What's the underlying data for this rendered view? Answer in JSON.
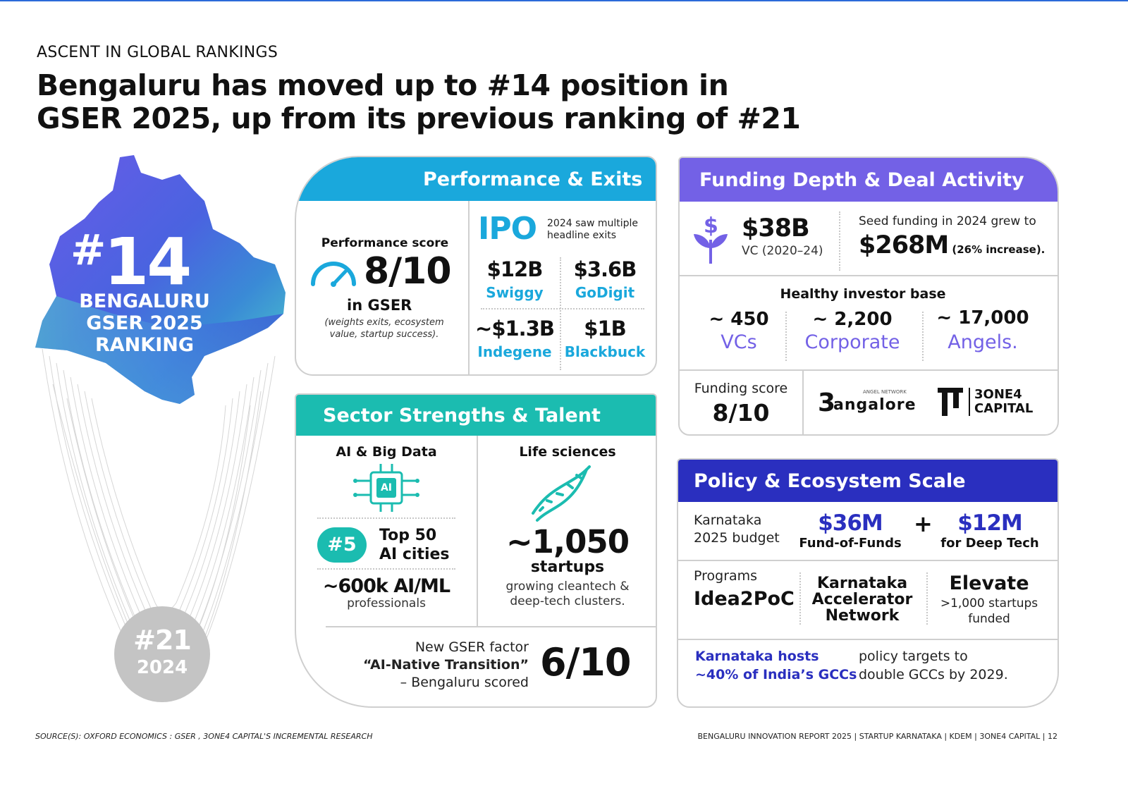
{
  "kicker": "ASCENT IN GLOBAL RANKINGS",
  "headline": {
    "line1": "Bengaluru has moved up to #14 position in",
    "line2": "GSER 2025, up from its previous ranking of #21"
  },
  "map": {
    "rank_hash": "#",
    "rank_num": "14",
    "label": [
      "BENGALURU",
      "GSER 2025",
      "RANKING"
    ],
    "prev_rank": "#21",
    "prev_year": "2024"
  },
  "performance": {
    "title": "Performance & Exits",
    "score_label": "Performance score",
    "score": "8/10",
    "score_sub": "in GSER",
    "score_note": "(weights exits, ecosystem value, startup success).",
    "ipo": "IPO",
    "ipo_note": "2024 saw multiple headline exits",
    "exits": [
      {
        "value": "$12B",
        "name": "Swiggy"
      },
      {
        "value": "$3.6B",
        "name": "GoDigit"
      },
      {
        "value": "~$1.3B",
        "name": "Indegene"
      },
      {
        "value": "$1B",
        "name": "Blackbuck"
      }
    ]
  },
  "sector": {
    "title": "Sector Strengths & Talent",
    "ai_title": "AI & Big Data",
    "ai_badge": "AI",
    "rank": "#5",
    "rank_text_1": "Top 50",
    "rank_text_2": "AI cities",
    "talent_value": "~600k AI/ML",
    "talent_sub": "professionals",
    "life_title": "Life sciences",
    "startups_value": "~1,050",
    "startups_label": "startups",
    "startups_note_1": "growing cleantech &",
    "startups_note_2": "deep-tech clusters.",
    "factor_1": "New GSER factor",
    "factor_2": "“AI-Native Transition”",
    "factor_3": "– Bengaluru scored",
    "factor_score": "6/10"
  },
  "funding": {
    "title": "Funding Depth & Deal Activity",
    "vc_value": "$38B",
    "vc_label": "VC (2020–24)",
    "seed_text": "Seed funding in 2024 grew to",
    "seed_value": "$268M",
    "seed_increase": "(26% increase).",
    "investor_title": "Healthy investor base",
    "investors": [
      {
        "count": "~ 450",
        "type": "VCs"
      },
      {
        "count": "~ 2,200",
        "type": "Corporate"
      },
      {
        "count": "~ 17,000",
        "type": "Angels."
      }
    ],
    "score_label": "Funding score",
    "score": "8/10",
    "logo1_small": "ANGEL NETWORK",
    "logo1_text": "angalore",
    "logo2_line1": "3ONE4",
    "logo2_line2": "CAPITAL"
  },
  "policy": {
    "title": "Policy & Ecosystem Scale",
    "budget_1": "Karnataka",
    "budget_2": "2025 budget",
    "fof_value": "$36M",
    "fof_label": "Fund-of-Funds",
    "plus": "+",
    "deeptech_value": "$12M",
    "deeptech_label": "for Deep Tech",
    "programs_label": "Programs",
    "prog1": "Idea2PoC",
    "prog2_1": "Karnataka",
    "prog2_2": "Accelerator",
    "prog2_3": "Network",
    "prog3": "Elevate",
    "prog3_sub_1": ">1,000 startups",
    "prog3_sub_2": "funded",
    "gcc_1": "Karnataka hosts",
    "gcc_2": "~40% of India’s GCCs",
    "gcc_target_1": "policy targets to",
    "gcc_target_2": "double GCCs by 2029."
  },
  "footer": {
    "source": "SOURCE(S): OXFORD ECONOMICS : GSER , 3ONE4 CAPITAL'S INCREMENTAL  RESEARCH",
    "credit": "BENGALURU INNOVATION REPORT 2025 | STARTUP KARNATAKA | KDEM | 3ONE4 CAPITAL | 12"
  },
  "colors": {
    "cyan": "#1aa8dc",
    "teal": "#1bbcb0",
    "purple": "#7361e6",
    "blue": "#2a2fbf",
    "grey": "#c4c4c4"
  }
}
